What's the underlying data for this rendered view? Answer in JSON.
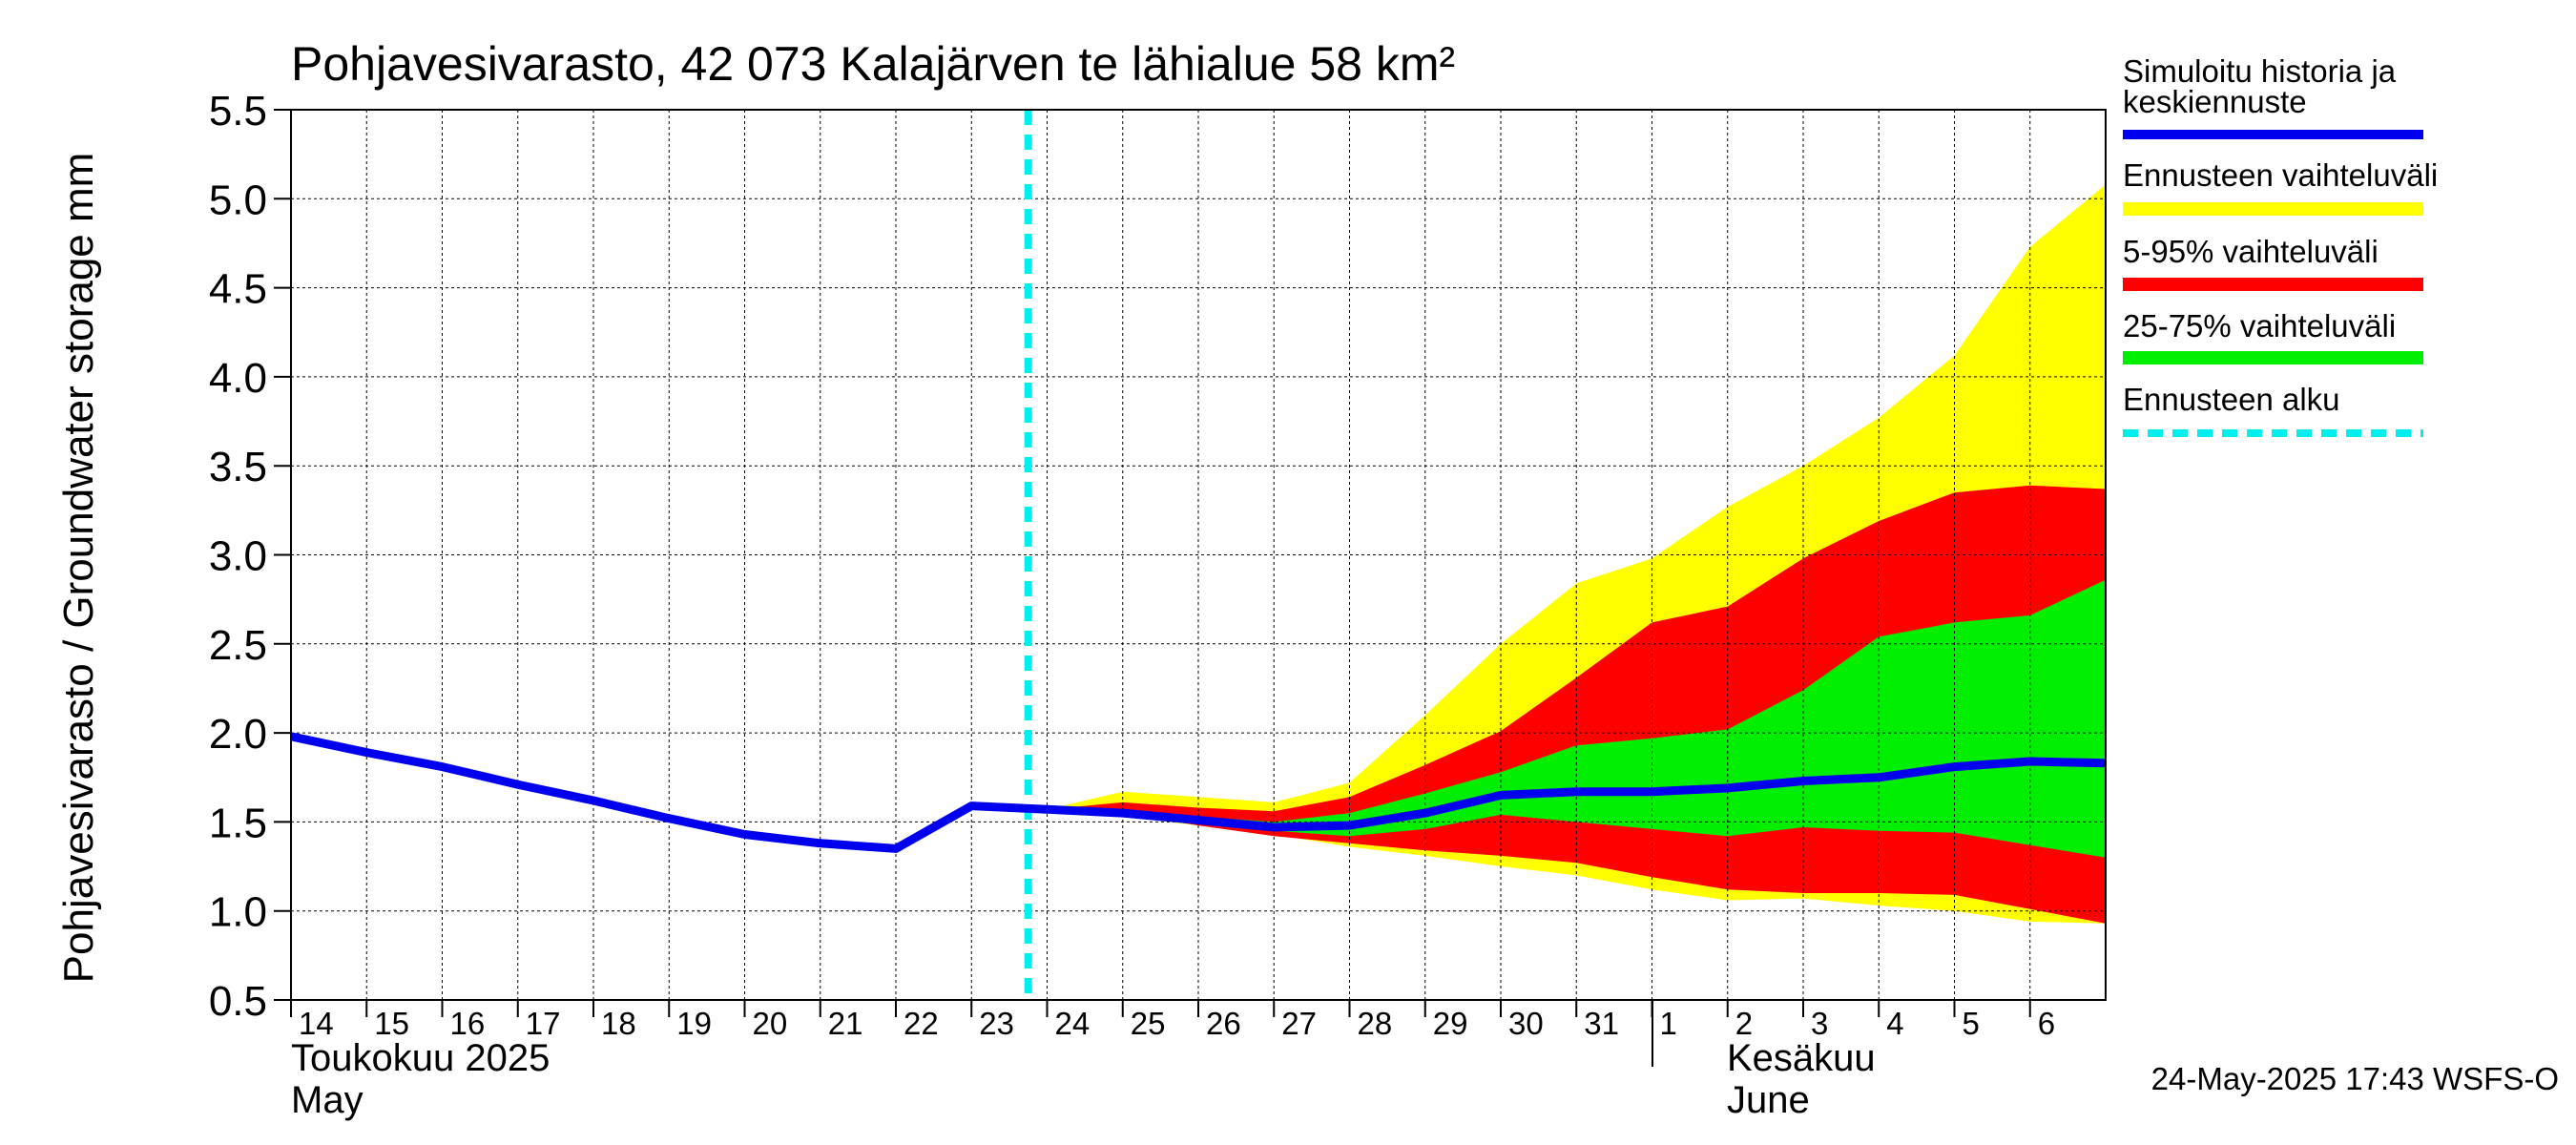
{
  "chart_data": {
    "type": "area",
    "title": "Pohjavesivarasto, 42 073 Kalajärven te lähialue 58 km²",
    "ylabel": "Pohjavesivarasto / Groundwater storage   mm",
    "ylim": [
      0.5,
      5.5
    ],
    "yticks": [
      "0.5",
      "1.0",
      "1.5",
      "2.0",
      "2.5",
      "3.0",
      "3.5",
      "4.0",
      "4.5",
      "5.0",
      "5.5"
    ],
    "x_day_labels": [
      "14",
      "15",
      "16",
      "17",
      "18",
      "19",
      "20",
      "21",
      "22",
      "23",
      "24",
      "25",
      "26",
      "27",
      "28",
      "29",
      "30",
      "31",
      "1",
      "2",
      "3",
      "4",
      "5",
      "6"
    ],
    "month_labels": [
      {
        "line1": "Toukokuu  2025",
        "line2": "May"
      },
      {
        "line1": "Kesäkuu",
        "line2": "June"
      }
    ],
    "timestamp": "24-May-2025 17:43 WSFS-O",
    "grid": true,
    "forecast_start": "2025-05-23 18:00",
    "history": {
      "dates": [
        "2025-05-14",
        "2025-05-15",
        "2025-05-16",
        "2025-05-17",
        "2025-05-18",
        "2025-05-19",
        "2025-05-20",
        "2025-05-21",
        "2025-05-22",
        "2025-05-23",
        "2025-05-24"
      ],
      "values": [
        1.98,
        1.89,
        1.81,
        1.71,
        1.62,
        1.52,
        1.43,
        1.38,
        1.35,
        1.59,
        1.57
      ]
    },
    "forecast": {
      "dates": [
        "2025-05-24",
        "2025-05-25",
        "2025-05-26",
        "2025-05-27",
        "2025-05-28",
        "2025-05-29",
        "2025-05-30",
        "2025-05-31",
        "2025-06-01",
        "2025-06-02",
        "2025-06-03",
        "2025-06-04",
        "2025-06-05",
        "2025-06-06",
        "2025-06-07"
      ],
      "median": [
        1.57,
        1.55,
        1.51,
        1.47,
        1.48,
        1.55,
        1.65,
        1.67,
        1.67,
        1.69,
        1.73,
        1.75,
        1.81,
        1.84,
        1.83
      ],
      "full_range_low": [
        1.57,
        1.53,
        1.48,
        1.43,
        1.36,
        1.31,
        1.25,
        1.2,
        1.12,
        1.06,
        1.07,
        1.03,
        1.0,
        0.94,
        0.93
      ],
      "full_range_high": [
        1.57,
        1.67,
        1.64,
        1.61,
        1.72,
        2.1,
        2.5,
        2.84,
        2.98,
        3.27,
        3.5,
        3.77,
        4.12,
        4.73,
        5.08
      ],
      "p5": [
        1.57,
        1.55,
        1.48,
        1.42,
        1.38,
        1.34,
        1.31,
        1.27,
        1.19,
        1.12,
        1.1,
        1.1,
        1.09,
        1.01,
        0.93
      ],
      "p95": [
        1.57,
        1.61,
        1.58,
        1.56,
        1.64,
        1.82,
        2.01,
        2.31,
        2.62,
        2.71,
        2.98,
        3.19,
        3.35,
        3.39,
        3.37
      ],
      "p25": [
        1.57,
        1.55,
        1.5,
        1.45,
        1.42,
        1.46,
        1.54,
        1.5,
        1.46,
        1.42,
        1.47,
        1.45,
        1.44,
        1.37,
        1.3
      ],
      "p75": [
        1.57,
        1.57,
        1.53,
        1.5,
        1.55,
        1.66,
        1.78,
        1.93,
        1.97,
        2.02,
        2.24,
        2.54,
        2.62,
        2.66,
        2.86
      ]
    },
    "legend": [
      {
        "label": "Simuloitu historia ja keskiennuste",
        "color": "#0000ee",
        "style": "solid"
      },
      {
        "label": "Ennusteen vaihteluväli",
        "color": "#ffff00",
        "style": "solid"
      },
      {
        "label": "5-95% vaihteluväli",
        "color": "#ff0000",
        "style": "solid"
      },
      {
        "label": "25-75% vaihteluväli",
        "color": "#00ee00",
        "style": "solid"
      },
      {
        "label": "Ennusteen alku",
        "color": "#00eeee",
        "style": "dashed"
      }
    ],
    "legend_position": "right",
    "colors": {
      "median": "#0000ee",
      "full_range": "#ffff00",
      "p5_95": "#ff0000",
      "p25_75": "#00ee00",
      "forecast_start": "#00eeee",
      "grid": "#000000"
    }
  }
}
